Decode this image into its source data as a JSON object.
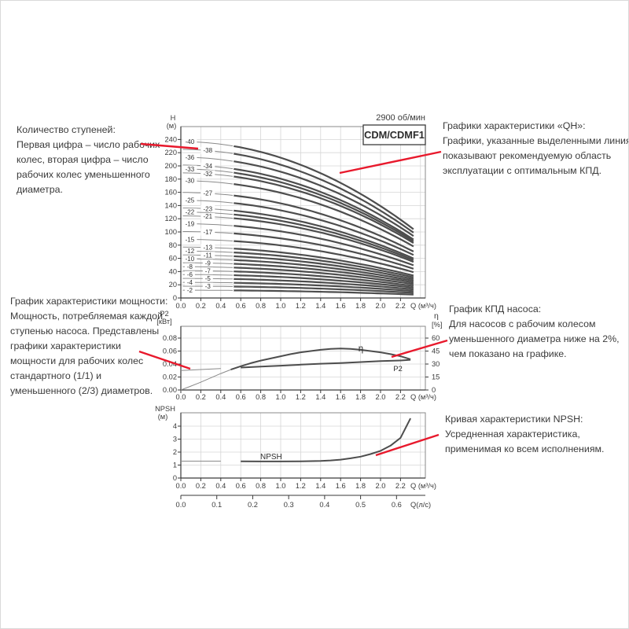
{
  "figure": {
    "rpm_label": "2900 об/мин",
    "model_label": "CDM/CDMF1",
    "colors": {
      "leader_red": "#e8192c",
      "curve_bold": "#4d4d4d",
      "curve_thin": "#8a8a8a",
      "grid": "#d6d6d6",
      "frame": "#888888",
      "axis": "#3a3a3a",
      "text": "#3b3b3b"
    }
  },
  "annotations": {
    "stages": {
      "lines": [
        "Количество ступеней:",
        "Первая цифра – число рабочих",
        "колес, вторая цифра – число",
        "рабочих колес уменьшенного",
        "диаметра."
      ]
    },
    "qh": {
      "lines": [
        "Графики характеристики «QH»:",
        "Графики, указанные выделенными линиями,",
        "показывают рекомендуемую область",
        "эксплуатации с оптимальным КПД."
      ]
    },
    "power": {
      "lines": [
        "График характеристики мощности:",
        "Мощность, потребляемая каждой",
        "ступенью насоса. Представлены",
        "графики характеристики",
        "мощности для рабочих колес",
        "стандартного (1/1) и",
        "уменьшенного (2/3) диаметров."
      ]
    },
    "efficiency": {
      "lines": [
        "График КПД насоса:",
        "Для насосов с рабочим колесом",
        "уменьшенного диаметра ниже на 2%,",
        "чем показано на графике."
      ]
    },
    "npsh": {
      "lines": [
        "Кривая характеристики NPSH:",
        "Усредненная характеристика,",
        "применимая ко всем исполнениям."
      ]
    }
  },
  "chart_data": [
    {
      "id": "qh",
      "type": "line",
      "title": "CDM/CDMF1",
      "note": "2900 об/мин",
      "xlabel": "Q (м³/ч)",
      "ylabel_lines": [
        "H",
        "(м)"
      ],
      "x_ticks": [
        "0.0",
        "0.2",
        "0.4",
        "0.6",
        "0.8",
        "1.0",
        "1.2",
        "1.4",
        "1.6",
        "1.8",
        "2.0",
        "2.2"
      ],
      "y_ticks": [
        0,
        20,
        40,
        60,
        80,
        100,
        120,
        140,
        160,
        180,
        200,
        220,
        240
      ],
      "xlim": [
        0,
        2.45
      ],
      "ylim": [
        0,
        259
      ],
      "q_curve_start": 0.02,
      "q_bold_start": 0.53,
      "q_end": 2.33,
      "curves": [
        {
          "label": "-40",
          "h_shutoff": 236.8,
          "h_at_qmax": 104.2,
          "label_col": "inner"
        },
        {
          "label": "-38",
          "h_shutoff": 225.0,
          "h_at_qmax": 99.0,
          "label_col": "outer"
        },
        {
          "label": "-36",
          "h_shutoff": 213.1,
          "h_at_qmax": 93.8,
          "label_col": "inner"
        },
        {
          "label": "-34",
          "h_shutoff": 201.3,
          "h_at_qmax": 88.6,
          "label_col": "outer"
        },
        {
          "label": "-33",
          "h_shutoff": 195.4,
          "h_at_qmax": 86.0,
          "label_col": "inner"
        },
        {
          "label": "-32",
          "h_shutoff": 189.4,
          "h_at_qmax": 83.3,
          "label_col": "outer"
        },
        {
          "label": "-30",
          "h_shutoff": 177.6,
          "h_at_qmax": 78.1,
          "label_col": "inner"
        },
        {
          "label": "-27",
          "h_shutoff": 159.8,
          "h_at_qmax": 70.3,
          "label_col": "outer"
        },
        {
          "label": "-25",
          "h_shutoff": 148.0,
          "h_at_qmax": 65.1,
          "label_col": "inner"
        },
        {
          "label": "-23",
          "h_shutoff": 136.2,
          "h_at_qmax": 59.9,
          "label_col": "outer"
        },
        {
          "label": "-22",
          "h_shutoff": 130.2,
          "h_at_qmax": 57.3,
          "label_col": "inner"
        },
        {
          "label": "-21",
          "h_shutoff": 124.3,
          "h_at_qmax": 54.7,
          "label_col": "outer"
        },
        {
          "label": "-19",
          "h_shutoff": 112.5,
          "h_at_qmax": 49.5,
          "label_col": "inner"
        },
        {
          "label": "-17",
          "h_shutoff": 100.6,
          "h_at_qmax": 44.3,
          "label_col": "outer"
        },
        {
          "label": "-15",
          "h_shutoff": 88.8,
          "h_at_qmax": 39.1,
          "label_col": "inner"
        },
        {
          "label": "-13",
          "h_shutoff": 77.0,
          "h_at_qmax": 33.9,
          "label_col": "outer"
        },
        {
          "label": "-12",
          "h_shutoff": 71.0,
          "h_at_qmax": 31.2,
          "label_col": "inner"
        },
        {
          "label": "-11",
          "h_shutoff": 65.1,
          "h_at_qmax": 28.6,
          "label_col": "outer"
        },
        {
          "label": "-10",
          "h_shutoff": 59.2,
          "h_at_qmax": 26.0,
          "label_col": "inner"
        },
        {
          "label": "-9",
          "h_shutoff": 53.3,
          "h_at_qmax": 23.5,
          "label_col": "outer"
        },
        {
          "label": "-8",
          "h_shutoff": 47.4,
          "h_at_qmax": 20.9,
          "label_col": "inner"
        },
        {
          "label": "-7",
          "h_shutoff": 41.4,
          "h_at_qmax": 18.2,
          "label_col": "outer"
        },
        {
          "label": "-6",
          "h_shutoff": 35.5,
          "h_at_qmax": 15.6,
          "label_col": "inner"
        },
        {
          "label": "-5",
          "h_shutoff": 29.6,
          "h_at_qmax": 13.0,
          "label_col": "outer"
        },
        {
          "label": "-4",
          "h_shutoff": 23.7,
          "h_at_qmax": 10.4,
          "label_col": "inner"
        },
        {
          "label": "-3",
          "h_shutoff": 17.8,
          "h_at_qmax": 7.8,
          "label_col": "outer"
        },
        {
          "label": "-2",
          "h_shutoff": 11.8,
          "h_at_qmax": 5.2,
          "label_col": "inner"
        }
      ]
    },
    {
      "id": "power_efficiency",
      "type": "line",
      "xlabel": "Q (м³/ч)",
      "ylabel_left_lines": [
        "P2",
        "[кВт]"
      ],
      "ylabel_right_lines": [
        "η",
        "[%]"
      ],
      "x_ticks": [
        "0.0",
        "0.2",
        "0.4",
        "0.6",
        "0.8",
        "1.0",
        "1.2",
        "1.4",
        "1.6",
        "1.8",
        "2.0",
        "2.2"
      ],
      "y_ticks_left": [
        "0.00",
        "0.02",
        "0.04",
        "0.06",
        "0.08"
      ],
      "y_ticks_right": [
        0,
        15,
        30,
        45,
        60
      ],
      "q_bold_start": 0.5,
      "series": [
        {
          "name": "P2",
          "units": "кВт",
          "label_pos": [
            505,
            471
          ],
          "points": [
            [
              0,
              0.03
            ],
            [
              0.2,
              0.0315
            ],
            [
              0.4,
              0.033
            ],
            [
              0.6,
              0.0345
            ],
            [
              0.8,
              0.036
            ],
            [
              1.0,
              0.0375
            ],
            [
              1.2,
              0.039
            ],
            [
              1.4,
              0.0405
            ],
            [
              1.6,
              0.0415
            ],
            [
              1.8,
              0.043
            ],
            [
              2.0,
              0.0445
            ],
            [
              2.2,
              0.0455
            ],
            [
              2.3,
              0.0465
            ]
          ]
        },
        {
          "name": "η",
          "units": "%",
          "label_pos": [
            458,
            446
          ],
          "points": [
            [
              0,
              0
            ],
            [
              0.1,
              4.5
            ],
            [
              0.2,
              9
            ],
            [
              0.3,
              14
            ],
            [
              0.4,
              19
            ],
            [
              0.5,
              23.5
            ],
            [
              0.6,
              27.5
            ],
            [
              0.7,
              31
            ],
            [
              0.8,
              34
            ],
            [
              0.9,
              36.5
            ],
            [
              1.0,
              39
            ],
            [
              1.1,
              41.5
            ],
            [
              1.2,
              43.5
            ],
            [
              1.3,
              45
            ],
            [
              1.4,
              46.5
            ],
            [
              1.5,
              47.5
            ],
            [
              1.6,
              48
            ],
            [
              1.7,
              47.5
            ],
            [
              1.8,
              46.5
            ],
            [
              1.9,
              45
            ],
            [
              2.0,
              43.5
            ],
            [
              2.1,
              41.5
            ],
            [
              2.2,
              39
            ],
            [
              2.3,
              35.5
            ]
          ]
        }
      ]
    },
    {
      "id": "npsh",
      "type": "line",
      "xlabel": "Q (м³/ч)",
      "xlabel2": "Q(л/с)",
      "ylabel_lines": [
        "NPSH",
        "(м)"
      ],
      "x_ticks": [
        "0.0",
        "0.2",
        "0.4",
        "0.6",
        "0.8",
        "1.0",
        "1.2",
        "1.4",
        "1.6",
        "1.8",
        "2.0",
        "2.2"
      ],
      "x_ticks_lps": [
        "0.0",
        "0.1",
        "0.2",
        "0.3",
        "0.4",
        "0.5",
        "0.6"
      ],
      "y_ticks": [
        0,
        1,
        2,
        3,
        4
      ],
      "q_bold_start": 0.5,
      "curve_label": "NPSH",
      "points": [
        [
          0,
          1.3
        ],
        [
          0.2,
          1.3
        ],
        [
          0.4,
          1.3
        ],
        [
          0.6,
          1.29
        ],
        [
          0.8,
          1.28
        ],
        [
          1.0,
          1.28
        ],
        [
          1.2,
          1.29
        ],
        [
          1.4,
          1.32
        ],
        [
          1.5,
          1.36
        ],
        [
          1.6,
          1.42
        ],
        [
          1.7,
          1.52
        ],
        [
          1.8,
          1.65
        ],
        [
          1.9,
          1.85
        ],
        [
          2.0,
          2.1
        ],
        [
          2.1,
          2.5
        ],
        [
          2.2,
          3.1
        ],
        [
          2.3,
          4.6
        ]
      ]
    }
  ]
}
